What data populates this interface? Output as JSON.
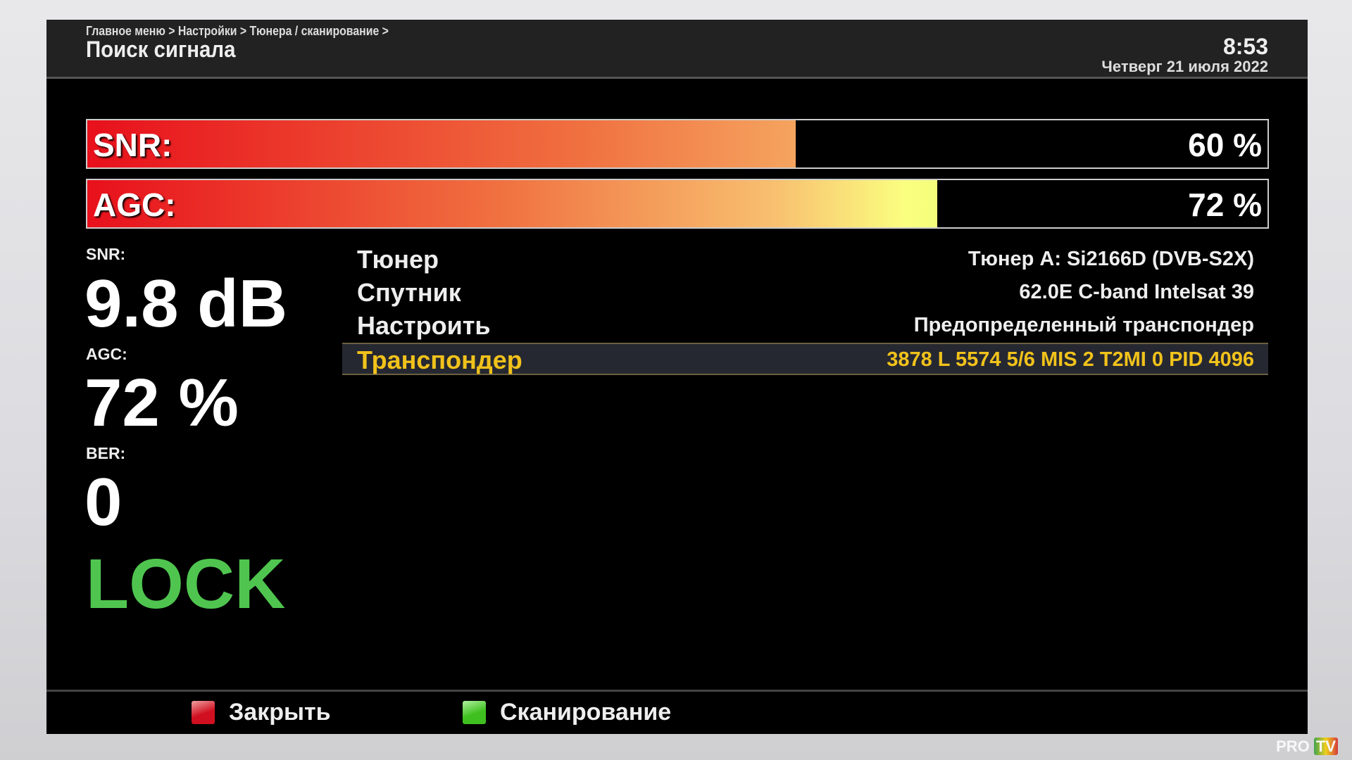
{
  "header": {
    "breadcrumb": "Главное меню > Настройки > Тюнера / сканирование >",
    "title": "Поиск сигнала",
    "time": "8:53",
    "date": "Четверг 21 июля 2022"
  },
  "bars": [
    {
      "label": "SNR:",
      "percent_text": "60 %",
      "value": 60
    },
    {
      "label": "AGC:",
      "percent_text": "72 %",
      "value": 72
    }
  ],
  "stats": {
    "snr_label": "SNR:",
    "snr_value": "9.8 dB",
    "agc_label": "AGC:",
    "agc_value": "72 %",
    "ber_label": "BER:",
    "ber_value": "0",
    "lock_status": "LOCK",
    "lock_color": "#4fc54f"
  },
  "info_rows": [
    {
      "key": "Тюнер",
      "value": "Тюнер A: Si2166D (DVB-S2X)"
    },
    {
      "key": "Спутник",
      "value": "62.0E C-band Intelsat 39"
    },
    {
      "key": "Настроить",
      "value": "Предопределенный транспондер"
    },
    {
      "key": "Транспондер",
      "value": "3878 L 5574 5/6 MIS 2 T2MI 0 PID 4096",
      "selected": true
    }
  ],
  "footer": {
    "close_label": "Закрыть",
    "close_color": "#d01020",
    "scan_label": "Сканирование",
    "scan_color": "#40c020"
  },
  "watermark": {
    "text": "PRO TV"
  },
  "colors": {
    "highlight_text": "#f1c21b"
  }
}
